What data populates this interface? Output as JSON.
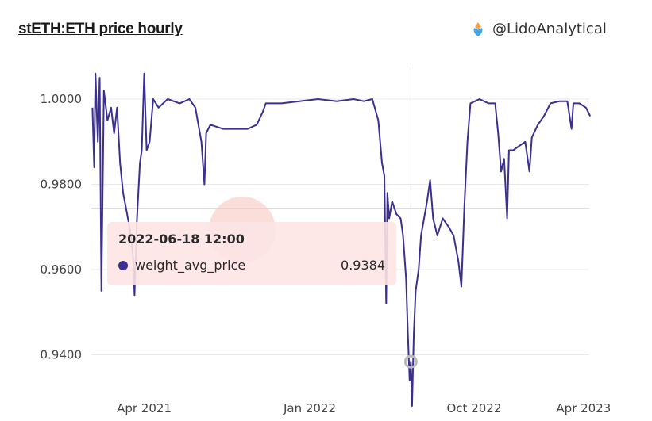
{
  "header": {
    "title": "stETH:ETH price hourly",
    "author": "@LidoAnalytical",
    "author_icon": "lido-drop-icon"
  },
  "colors": {
    "series": "#3b2f8f",
    "tooltip_bg": "#fde4e4",
    "grid": "#e8e8e8"
  },
  "tooltip": {
    "date": "2022-06-18 12:00",
    "series_name": "weight_avg_price",
    "value": "0.9384"
  },
  "chart_data": {
    "type": "line",
    "title": "stETH:ETH price hourly",
    "xlabel": "",
    "ylabel": "",
    "ylim": [
      0.925,
      1.008
    ],
    "yticks": [
      0.94,
      0.96,
      0.98,
      1.0
    ],
    "ytick_labels": [
      "0.9400",
      "0.9600",
      "0.9800",
      "1.0000"
    ],
    "xticks": [
      "2021-04-01",
      "2022-01-01",
      "2022-10-01",
      "2023-04-01"
    ],
    "xtick_labels": [
      "Apr 2021",
      "Jan 2022",
      "Oct 2022",
      "Apr 2023"
    ],
    "grid": true,
    "crosshair_x": "2022-06-18",
    "series": [
      {
        "name": "weight_avg_price",
        "points": [
          [
            "2021-01-05",
            0.998
          ],
          [
            "2021-01-08",
            0.984
          ],
          [
            "2021-01-10",
            1.006
          ],
          [
            "2021-01-14",
            0.99
          ],
          [
            "2021-01-17",
            1.005
          ],
          [
            "2021-01-20",
            0.955
          ],
          [
            "2021-01-24",
            1.002
          ],
          [
            "2021-01-30",
            0.995
          ],
          [
            "2021-02-05",
            0.998
          ],
          [
            "2021-02-10",
            0.992
          ],
          [
            "2021-02-15",
            0.998
          ],
          [
            "2021-02-20",
            0.985
          ],
          [
            "2021-02-25",
            0.978
          ],
          [
            "2021-03-01",
            0.975
          ],
          [
            "2021-03-05",
            0.972
          ],
          [
            "2021-03-10",
            0.968
          ],
          [
            "2021-03-14",
            0.962
          ],
          [
            "2021-03-16",
            0.954
          ],
          [
            "2021-03-20",
            0.972
          ],
          [
            "2021-03-25",
            0.985
          ],
          [
            "2021-03-28",
            0.988
          ],
          [
            "2021-04-01",
            1.006
          ],
          [
            "2021-04-05",
            0.988
          ],
          [
            "2021-04-10",
            0.99
          ],
          [
            "2021-04-16",
            1.0
          ],
          [
            "2021-04-25",
            0.998
          ],
          [
            "2021-05-10",
            1.0
          ],
          [
            "2021-05-30",
            0.999
          ],
          [
            "2021-06-15",
            1.0
          ],
          [
            "2021-06-25",
            0.998
          ],
          [
            "2021-06-30",
            0.994
          ],
          [
            "2021-07-05",
            0.99
          ],
          [
            "2021-07-10",
            0.98
          ],
          [
            "2021-07-13",
            0.992
          ],
          [
            "2021-07-20",
            0.994
          ],
          [
            "2021-08-10",
            0.993
          ],
          [
            "2021-09-01",
            0.993
          ],
          [
            "2021-09-20",
            0.993
          ],
          [
            "2021-10-05",
            0.994
          ],
          [
            "2021-10-15",
            0.997
          ],
          [
            "2021-10-20",
            0.999
          ],
          [
            "2021-11-15",
            0.999
          ],
          [
            "2021-12-15",
            0.9995
          ],
          [
            "2022-01-15",
            1.0
          ],
          [
            "2022-02-15",
            0.9995
          ],
          [
            "2022-03-15",
            1.0
          ],
          [
            "2022-04-01",
            0.9995
          ],
          [
            "2022-04-15",
            1.0
          ],
          [
            "2022-04-25",
            0.995
          ],
          [
            "2022-05-01",
            0.985
          ],
          [
            "2022-05-05",
            0.982
          ],
          [
            "2022-05-08",
            0.952
          ],
          [
            "2022-05-10",
            0.978
          ],
          [
            "2022-05-13",
            0.972
          ],
          [
            "2022-05-18",
            0.976
          ],
          [
            "2022-05-25",
            0.973
          ],
          [
            "2022-06-01",
            0.972
          ],
          [
            "2022-06-05",
            0.968
          ],
          [
            "2022-06-10",
            0.958
          ],
          [
            "2022-06-13",
            0.945
          ],
          [
            "2022-06-16",
            0.934
          ],
          [
            "2022-06-18",
            0.9384
          ],
          [
            "2022-06-20",
            0.928
          ],
          [
            "2022-06-23",
            0.945
          ],
          [
            "2022-06-26",
            0.955
          ],
          [
            "2022-07-01",
            0.96
          ],
          [
            "2022-07-05",
            0.968
          ],
          [
            "2022-07-10",
            0.972
          ],
          [
            "2022-07-15",
            0.976
          ],
          [
            "2022-07-20",
            0.981
          ],
          [
            "2022-07-25",
            0.972
          ],
          [
            "2022-08-01",
            0.968
          ],
          [
            "2022-08-10",
            0.972
          ],
          [
            "2022-08-20",
            0.97
          ],
          [
            "2022-08-28",
            0.968
          ],
          [
            "2022-09-05",
            0.962
          ],
          [
            "2022-09-10",
            0.956
          ],
          [
            "2022-09-15",
            0.975
          ],
          [
            "2022-09-20",
            0.99
          ],
          [
            "2022-09-25",
            0.999
          ],
          [
            "2022-10-10",
            1.0
          ],
          [
            "2022-10-25",
            0.999
          ],
          [
            "2022-11-05",
            0.999
          ],
          [
            "2022-11-10",
            0.992
          ],
          [
            "2022-11-15",
            0.983
          ],
          [
            "2022-11-20",
            0.986
          ],
          [
            "2022-11-25",
            0.972
          ],
          [
            "2022-11-28",
            0.988
          ],
          [
            "2022-12-05",
            0.988
          ],
          [
            "2022-12-15",
            0.989
          ],
          [
            "2022-12-25",
            0.99
          ],
          [
            "2023-01-01",
            0.983
          ],
          [
            "2023-01-05",
            0.991
          ],
          [
            "2023-01-15",
            0.994
          ],
          [
            "2023-01-25",
            0.996
          ],
          [
            "2023-02-05",
            0.999
          ],
          [
            "2023-02-20",
            0.9995
          ],
          [
            "2023-03-05",
            0.9995
          ],
          [
            "2023-03-12",
            0.993
          ],
          [
            "2023-03-15",
            0.999
          ],
          [
            "2023-03-25",
            0.999
          ],
          [
            "2023-04-05",
            0.998
          ],
          [
            "2023-04-12",
            0.996
          ]
        ]
      }
    ]
  }
}
